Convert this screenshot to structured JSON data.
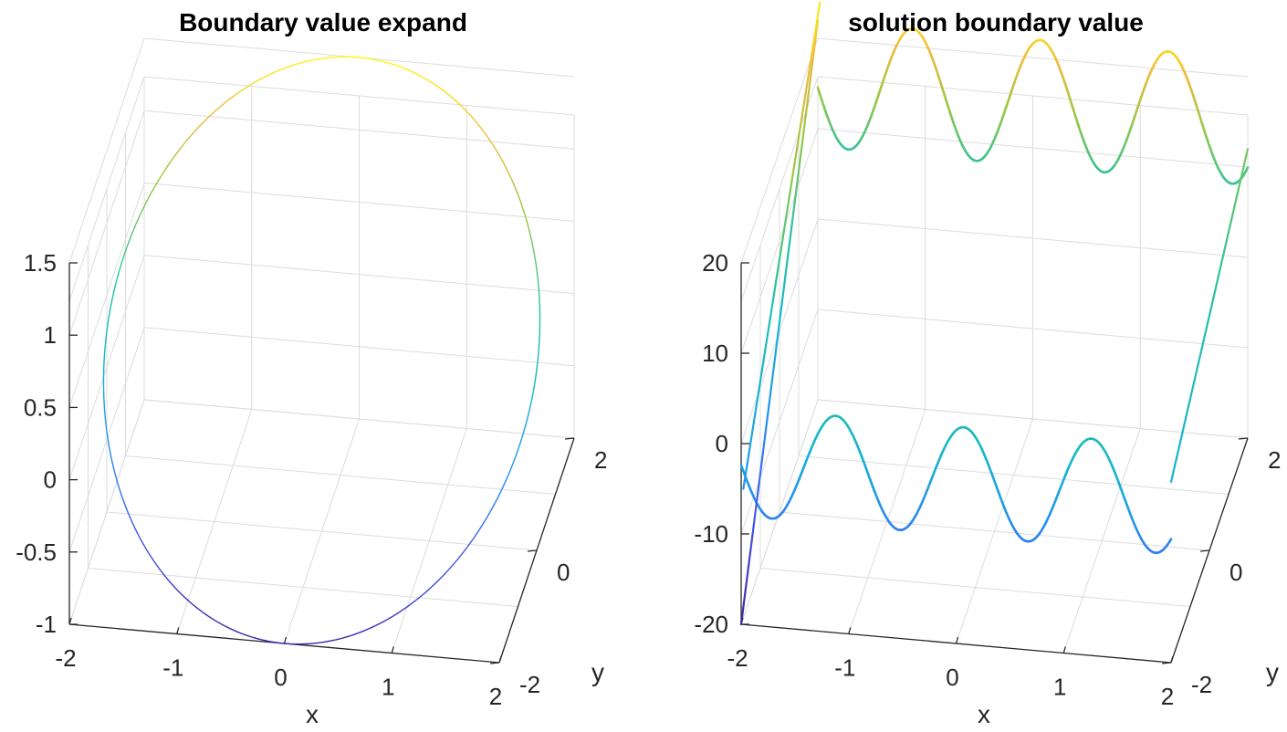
{
  "chart_data": [
    {
      "type": "line3d",
      "title": "Boundary value expand",
      "xlabel": "x",
      "ylabel": "y",
      "zlabel": "",
      "xlim": [
        -2,
        2
      ],
      "ylim": [
        -2,
        2
      ],
      "zlim": [
        -1,
        1.5
      ],
      "xticks": [
        "-2",
        "-1",
        "0",
        "1",
        "2"
      ],
      "yticks": [
        "-2",
        "0",
        "2"
      ],
      "zticks": [
        "-1",
        "-0.5",
        "0",
        "0.5",
        "1",
        "1.5"
      ],
      "grid": true,
      "colormap": "parula",
      "curve": {
        "x": "2cos(t)",
        "y": "2sin(t)",
        "z": "0.25 + 1.25 sin(t)",
        "t_range": [
          0,
          6.2832
        ],
        "color_by": "z",
        "color_range": [
          -1,
          1.5
        ]
      }
    },
    {
      "type": "line3d",
      "title": "solution boundary value",
      "xlabel": "x",
      "ylabel": "y",
      "zlabel": "",
      "xlim": [
        -2,
        2
      ],
      "ylim": [
        -2,
        2
      ],
      "zlim": [
        -20,
        25
      ],
      "xticks": [
        "-2",
        "-1",
        "0",
        "1",
        "2"
      ],
      "yticks": [
        "-2",
        "0",
        "2"
      ],
      "zticks": [
        "-20",
        "-10",
        "0",
        "10",
        "20"
      ],
      "grid": true,
      "colormap": "parula",
      "curves": [
        {
          "name": "",
          "x": "2cos(t)",
          "y": "-2",
          "z": "-2 + 6 sin(x * 5.28)",
          "note_hidden": false
        },
        {
          "name": "",
          "x": "2cos(t)",
          "y": "2",
          "z": "15 + 7 sin(x * 5.28)"
        }
      ],
      "color_range": [
        -20,
        25
      ]
    }
  ]
}
